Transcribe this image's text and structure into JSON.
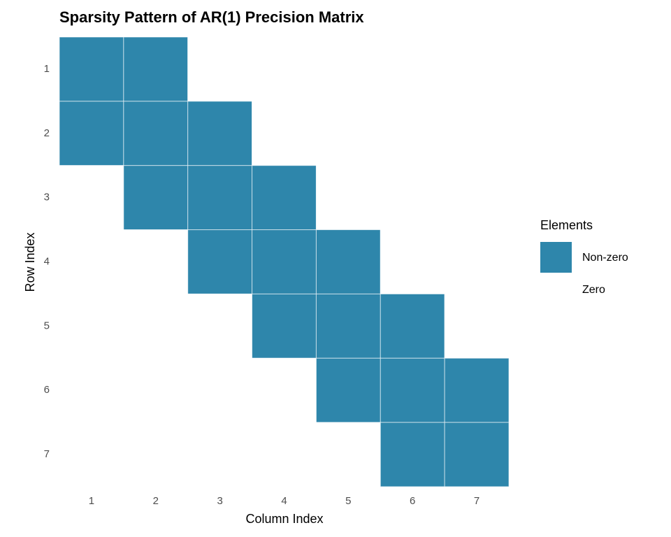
{
  "chart_data": {
    "type": "heatmap",
    "title": "Sparsity Pattern of AR(1) Precision Matrix",
    "x_label": "Column Index",
    "y_label": "Row Index",
    "x": [
      1,
      2,
      3,
      4,
      5,
      6,
      7
    ],
    "y": [
      1,
      2,
      3,
      4,
      5,
      6,
      7
    ],
    "values": [
      [
        1,
        1,
        0,
        0,
        0,
        0,
        0
      ],
      [
        1,
        1,
        1,
        0,
        0,
        0,
        0
      ],
      [
        0,
        1,
        1,
        1,
        0,
        0,
        0
      ],
      [
        0,
        0,
        1,
        1,
        1,
        0,
        0
      ],
      [
        0,
        0,
        0,
        1,
        1,
        1,
        0
      ],
      [
        0,
        0,
        0,
        0,
        1,
        1,
        1
      ],
      [
        0,
        0,
        0,
        0,
        0,
        1,
        1
      ]
    ],
    "legend": {
      "title": "Elements",
      "entries": [
        {
          "name": "Non-zero",
          "value": 1,
          "color": "#2e86ab"
        },
        {
          "name": "Zero",
          "value": 0,
          "color": "#ffffff"
        }
      ]
    }
  }
}
